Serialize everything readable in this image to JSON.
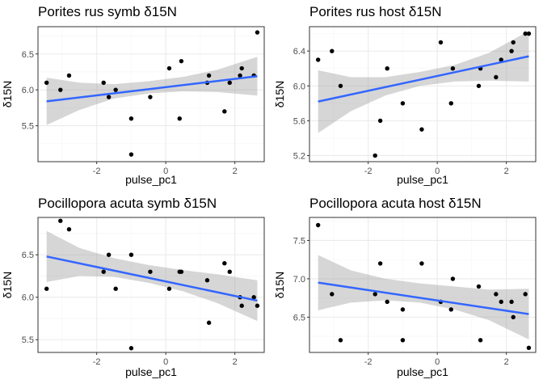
{
  "chart_data": [
    {
      "type": "scatter",
      "title": "Porites rus symb δ15N",
      "xlabel": "pulse_pc1",
      "ylabel": "δ15N",
      "xlim": [
        -3.7,
        2.85
      ],
      "ylim": [
        5.0,
        6.88
      ],
      "x_ticks": [
        -2,
        0,
        2
      ],
      "x_tick_labels": [
        "-2",
        "0",
        "2"
      ],
      "y_ticks": [
        5.5,
        6.0,
        6.5
      ],
      "y_tick_labels": [
        "5.5",
        "6.0",
        "6.5"
      ],
      "grid": true,
      "points": [
        {
          "x": -3.45,
          "y": 6.1
        },
        {
          "x": -3.05,
          "y": 6.0
        },
        {
          "x": -2.8,
          "y": 6.2
        },
        {
          "x": -1.8,
          "y": 6.1
        },
        {
          "x": -1.65,
          "y": 5.9
        },
        {
          "x": -1.45,
          "y": 6.0
        },
        {
          "x": -1.0,
          "y": 5.6
        },
        {
          "x": -1.0,
          "y": 5.1
        },
        {
          "x": -0.45,
          "y": 5.9
        },
        {
          "x": 0.1,
          "y": 6.3
        },
        {
          "x": 0.4,
          "y": 5.6
        },
        {
          "x": 0.45,
          "y": 6.4
        },
        {
          "x": 1.2,
          "y": 6.1
        },
        {
          "x": 1.25,
          "y": 6.2
        },
        {
          "x": 1.7,
          "y": 5.7
        },
        {
          "x": 1.85,
          "y": 6.1
        },
        {
          "x": 2.15,
          "y": 6.2
        },
        {
          "x": 2.2,
          "y": 6.3
        },
        {
          "x": 2.55,
          "y": 6.2
        },
        {
          "x": 2.65,
          "y": 6.8
        }
      ],
      "fit": {
        "x": [
          -3.45,
          2.65
        ],
        "y": [
          5.84,
          6.19
        ]
      },
      "ci_band": {
        "x": [
          -3.45,
          -2.5,
          -1.5,
          -0.5,
          0.5,
          1.5,
          2.65
        ],
        "lower": [
          5.51,
          5.72,
          5.88,
          5.95,
          5.98,
          5.97,
          5.92
        ],
        "upper": [
          6.17,
          6.1,
          6.08,
          6.12,
          6.18,
          6.28,
          6.46
        ]
      }
    },
    {
      "type": "scatter",
      "title": "Porites rus host δ15N",
      "xlabel": "pulse_pc1",
      "ylabel": "δ15N",
      "xlim": [
        -3.7,
        2.85
      ],
      "ylim": [
        5.13,
        6.68
      ],
      "x_ticks": [
        -2,
        0,
        2
      ],
      "x_tick_labels": [
        "-2",
        "0",
        "2"
      ],
      "y_ticks": [
        5.2,
        5.6,
        6.0,
        6.4
      ],
      "y_tick_labels": [
        "5.2",
        "5.6",
        "6.0",
        "6.4"
      ],
      "grid": true,
      "points": [
        {
          "x": -3.45,
          "y": 6.3
        },
        {
          "x": -3.05,
          "y": 6.4
        },
        {
          "x": -2.8,
          "y": 6.0
        },
        {
          "x": -1.8,
          "y": 5.2
        },
        {
          "x": -1.65,
          "y": 5.6
        },
        {
          "x": -1.45,
          "y": 6.2
        },
        {
          "x": -1.0,
          "y": 5.8
        },
        {
          "x": -0.45,
          "y": 5.5
        },
        {
          "x": 0.1,
          "y": 6.5
        },
        {
          "x": 0.4,
          "y": 5.8
        },
        {
          "x": 0.45,
          "y": 6.2
        },
        {
          "x": 1.2,
          "y": 6.0
        },
        {
          "x": 1.25,
          "y": 6.2
        },
        {
          "x": 1.7,
          "y": 6.1
        },
        {
          "x": 1.85,
          "y": 6.3
        },
        {
          "x": 2.15,
          "y": 6.4
        },
        {
          "x": 2.2,
          "y": 6.5
        },
        {
          "x": 2.55,
          "y": 6.6
        },
        {
          "x": 2.65,
          "y": 6.6
        }
      ],
      "fit": {
        "x": [
          -3.45,
          2.65
        ],
        "y": [
          5.82,
          6.34
        ]
      },
      "ci_band": {
        "x": [
          -3.45,
          -2.5,
          -1.5,
          -0.5,
          0.5,
          1.5,
          2.65
        ],
        "lower": [
          5.46,
          5.71,
          5.89,
          6.0,
          6.05,
          6.06,
          6.05
        ],
        "upper": [
          6.18,
          6.1,
          6.1,
          6.16,
          6.24,
          6.38,
          6.63
        ]
      }
    },
    {
      "type": "scatter",
      "title": "Pocillopora acuta symb δ15N",
      "xlabel": "pulse_pc1",
      "ylabel": "δ15N",
      "xlim": [
        -3.7,
        2.85
      ],
      "ylim": [
        5.35,
        6.94
      ],
      "x_ticks": [
        -2,
        0,
        2
      ],
      "x_tick_labels": [
        "-2",
        "0",
        "2"
      ],
      "y_ticks": [
        5.5,
        6.0,
        6.5
      ],
      "y_tick_labels": [
        "5.5",
        "6.0",
        "6.5"
      ],
      "grid": true,
      "points": [
        {
          "x": -3.45,
          "y": 6.1
        },
        {
          "x": -3.05,
          "y": 6.9
        },
        {
          "x": -2.8,
          "y": 6.8
        },
        {
          "x": -1.8,
          "y": 6.3
        },
        {
          "x": -1.65,
          "y": 6.5
        },
        {
          "x": -1.45,
          "y": 6.1
        },
        {
          "x": -1.0,
          "y": 6.5
        },
        {
          "x": -1.0,
          "y": 5.4
        },
        {
          "x": -0.45,
          "y": 6.3
        },
        {
          "x": 0.1,
          "y": 6.1
        },
        {
          "x": 0.4,
          "y": 6.3
        },
        {
          "x": 0.45,
          "y": 6.3
        },
        {
          "x": 1.2,
          "y": 6.2
        },
        {
          "x": 1.25,
          "y": 5.7
        },
        {
          "x": 1.7,
          "y": 6.4
        },
        {
          "x": 1.85,
          "y": 6.3
        },
        {
          "x": 2.15,
          "y": 6.0
        },
        {
          "x": 2.2,
          "y": 5.9
        },
        {
          "x": 2.55,
          "y": 6.0
        },
        {
          "x": 2.65,
          "y": 5.9
        }
      ],
      "fit": {
        "x": [
          -3.45,
          2.65
        ],
        "y": [
          6.48,
          5.96
        ]
      },
      "ci_band": {
        "x": [
          -3.45,
          -2.5,
          -1.5,
          -0.5,
          0.5,
          1.5,
          2.65
        ],
        "lower": [
          6.18,
          6.25,
          6.24,
          6.17,
          6.07,
          5.93,
          5.72
        ],
        "upper": [
          6.78,
          6.58,
          6.46,
          6.38,
          6.32,
          6.27,
          6.2
        ]
      }
    },
    {
      "type": "scatter",
      "title": "Pocillopora acuta host δ15N",
      "xlabel": "pulse_pc1",
      "ylabel": "δ15N",
      "xlim": [
        -3.7,
        2.85
      ],
      "ylim": [
        6.04,
        7.8
      ],
      "x_ticks": [
        -2,
        0,
        2
      ],
      "x_tick_labels": [
        "-2",
        "0",
        "2"
      ],
      "y_ticks": [
        6.5,
        7.0,
        7.5
      ],
      "y_tick_labels": [
        "6.5",
        "7.0",
        "7.5"
      ],
      "grid": true,
      "points": [
        {
          "x": -3.45,
          "y": 7.7
        },
        {
          "x": -3.05,
          "y": 6.8
        },
        {
          "x": -2.8,
          "y": 6.2
        },
        {
          "x": -1.8,
          "y": 6.8
        },
        {
          "x": -1.65,
          "y": 7.2
        },
        {
          "x": -1.45,
          "y": 6.7
        },
        {
          "x": -1.0,
          "y": 6.6
        },
        {
          "x": -1.0,
          "y": 6.2
        },
        {
          "x": -0.45,
          "y": 7.2
        },
        {
          "x": 0.1,
          "y": 6.7
        },
        {
          "x": 0.4,
          "y": 6.6
        },
        {
          "x": 0.45,
          "y": 7.0
        },
        {
          "x": 1.2,
          "y": 6.9
        },
        {
          "x": 1.25,
          "y": 6.2
        },
        {
          "x": 1.7,
          "y": 6.8
        },
        {
          "x": 1.85,
          "y": 6.7
        },
        {
          "x": 2.15,
          "y": 6.7
        },
        {
          "x": 2.2,
          "y": 6.5
        },
        {
          "x": 2.55,
          "y": 6.8
        },
        {
          "x": 2.65,
          "y": 6.1
        }
      ],
      "fit": {
        "x": [
          -3.45,
          2.65
        ],
        "y": [
          6.95,
          6.54
        ]
      },
      "ci_band": {
        "x": [
          -3.45,
          -2.5,
          -1.5,
          -0.5,
          0.5,
          1.5,
          2.65
        ],
        "lower": [
          6.59,
          6.69,
          6.72,
          6.69,
          6.6,
          6.46,
          6.21
        ],
        "upper": [
          7.31,
          7.11,
          7.0,
          6.94,
          6.9,
          6.86,
          6.87
        ]
      }
    }
  ],
  "colors": {
    "panel_background": "#ffffff",
    "panel_border": "#333333",
    "grid_major": "#ebebeb",
    "grid_minor": "#f5f5f5",
    "point": "#000000",
    "fit_line": "#3366ff",
    "ci_band": "#999999",
    "tick_label": "#4d4d4d"
  }
}
